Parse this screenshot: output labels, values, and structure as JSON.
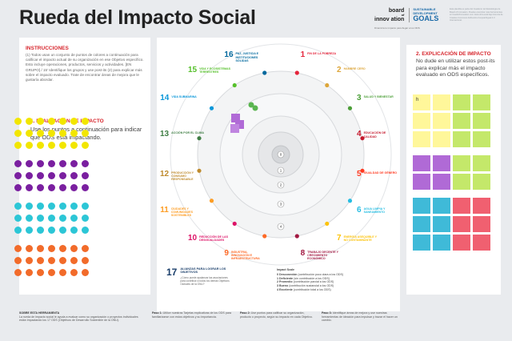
{
  "title": "Rueda del Impacto Social",
  "logos": {
    "board_line1": "board",
    "board_line2": "of",
    "board_line3": "innov ation",
    "sdg_line1": "SUSTAINABLE",
    "sdg_line2": "DEVELOPMENT",
    "sdg_goals": "GOALS",
    "subtitle": "Dinamiza tu impacto para llegar a los ODS"
  },
  "top_note": "Esta plantilla es parte del Cuaderno de Metodología de Board of Innovation. Puedes encontrar más herramientas en boardofinnovation.com. Esta obra está bajo licencia de Creative Commons Atribución-CompartirIgual 4.0 Internacional.",
  "left_panel": {
    "instructions_heading": "INSTRUCCIONES",
    "instructions_text": "(1) Todos usan un conjunto de puntos de colores a continuación para calificar el impacto actual de su organización en ese Objetivo específico. Esto incluye operaciones, productos, servicios y actividades. [EN GRUPO] / 15' Identifique los grupos y use post-its (2) para explicar más sobre el impacto evaluado. Trate de encontrar áreas de mejora que le gustaría abordar.",
    "evaluation_heading": "1. EVALUACIÓN DE IMPACTO",
    "evaluation_text": "Use los puntos a continuación para indicar qué ODS está impactando.",
    "dot_rows": [
      {
        "color": "#f2e600",
        "count": 7
      },
      {
        "color": "#f2e600",
        "count": 7
      },
      {
        "color": "#f2e600",
        "count": 7
      },
      {
        "color": "#7a1fa0",
        "count": 7
      },
      {
        "color": "#7a1fa0",
        "count": 7
      },
      {
        "color": "#7a1fa0",
        "count": 7
      },
      {
        "color": "#2cc6d6",
        "count": 7
      },
      {
        "color": "#2cc6d6",
        "count": 7
      },
      {
        "color": "#2cc6d6",
        "count": 7
      },
      {
        "color": "#f26b2a",
        "count": 7
      },
      {
        "color": "#f26b2a",
        "count": 7
      },
      {
        "color": "#f26b2a",
        "count": 7
      }
    ]
  },
  "wheel": {
    "goals": [
      {
        "n": "1",
        "label": "FIN DE LA POBREZA",
        "color": "#e5243b"
      },
      {
        "n": "2",
        "label": "HAMBRE CERO",
        "color": "#dda63a"
      },
      {
        "n": "3",
        "label": "SALUD Y BIENESTAR",
        "color": "#4c9f38"
      },
      {
        "n": "4",
        "label": "EDUCACIÓN DE CALIDAD",
        "color": "#c5192d"
      },
      {
        "n": "5",
        "label": "IGUALDAD DE GÉNERO",
        "color": "#ff3a21"
      },
      {
        "n": "6",
        "label": "AGUA LIMPIA Y SANEAMIENTO",
        "color": "#26bde2"
      },
      {
        "n": "7",
        "label": "ENERGÍA ASEQUIBLE Y NO CONTAMINANTE",
        "color": "#fcc30b"
      },
      {
        "n": "8",
        "label": "TRABAJO DECENTE Y CRECIMIENTO ECONÓMICO",
        "color": "#a21942"
      },
      {
        "n": "9",
        "label": "INDUSTRIA, INNOVACIÓN E INFRAESTRUCTURA",
        "color": "#fd6925"
      },
      {
        "n": "10",
        "label": "REDUCCIÓN DE LAS DESIGUALDADES",
        "color": "#dd1367"
      },
      {
        "n": "11",
        "label": "CIUDADES Y COMUNIDADES SOSTENIBLES",
        "color": "#fd9d24"
      },
      {
        "n": "12",
        "label": "PRODUCCIÓN Y CONSUMO RESPONSABLE",
        "color": "#bf8b2e"
      },
      {
        "n": "13",
        "label": "ACCIÓN POR EL CLIMA",
        "color": "#3f7e44"
      },
      {
        "n": "14",
        "label": "VIDA SUBMARINA",
        "color": "#0a97d9"
      },
      {
        "n": "15",
        "label": "VIDA Y ECOSISTEMAS TERRESTRES",
        "color": "#56c02b"
      },
      {
        "n": "16",
        "label": "PAZ, JUSTICIA E INSTITUCIONES SÓLIDAS",
        "color": "#00689d"
      }
    ],
    "ring_numbers": [
      "0",
      "1",
      "2",
      "3",
      "4"
    ],
    "goal17_number": "17",
    "goal17_label": "ALIANZAS PARA LOGRAR LOS OBJETIVOS",
    "goal17_sub": "¿Cómo puede apalancar las asociaciones para contribuir a todos los demás Objetivos Globales de la ONU?",
    "scale_heading": "Impact Scale",
    "scale_items": [
      {
        "n": "0",
        "name": "Desconexión",
        "desc": "(contribución poco clara a los ODS)"
      },
      {
        "n": "1",
        "name": "Deficiente",
        "desc": "(sin contribución a los ODS)"
      },
      {
        "n": "2",
        "name": "Promedio",
        "desc": "(contribución parcial a los ODS)"
      },
      {
        "n": "3",
        "name": "Bueno",
        "desc": "(contribución sustancial a los ODS)"
      },
      {
        "n": "4",
        "name": "Excelente",
        "desc": "(contribución total a los ODS)"
      }
    ]
  },
  "right_panel": {
    "heading": "2. EXPLICACIÓN DE IMPACTO",
    "text": "No dude en utilizar estos post-its para explicar más el impacto evaluado en ODS específicos.",
    "first_note": "h",
    "note_rows": [
      [
        "#fff79a",
        "#fff79a",
        "#c4e86a",
        "#c4e86a"
      ],
      [
        "#fff79a",
        "#fff79a",
        "#c4e86a",
        "#c4e86a"
      ],
      [
        "#fff79a",
        "#fff79a",
        "#c4e86a",
        "#c4e86a"
      ],
      [
        "#b06ad6",
        "#b06ad6",
        "#c4e86a",
        "#c4e86a"
      ],
      [
        "#b06ad6",
        "#b06ad6",
        "#c4e86a",
        "#c4e86a"
      ],
      [
        "#3fbad8",
        "#3fbad8",
        "#f06070",
        "#f06070"
      ],
      [
        "#3fbad8",
        "#3fbad8",
        "#f06070",
        "#f06070"
      ],
      [
        "#3fbad8",
        "#3fbad8",
        "#f06070",
        "#f06070"
      ]
    ]
  },
  "footer": {
    "about_heading": "SOBRE ESTA HERRAMIENTA",
    "about_text": "La rueda de impacto social le ayuda a evaluar como su organización o proyectos individuales están impactando los 17 ODS (Objetivos de Desarrollo Sostenible de la ONU).",
    "step1_heading": "Paso 1:",
    "step1_text": "Utilice nuestras Tarjetas explicativas de los ODS para familiarizarse con estos objetivos y su importancia.",
    "step2_heading": "Paso 2:",
    "step2_text": "Use puntos para calificar su organización, producto o proyecto, según su impacto en cada Objetivo.",
    "step3_heading": "Paso 3:",
    "step3_text": "Identifique áreas de mejora y use nuestras herramientas de ideación para impulsar y trazar el hacer un cambio."
  }
}
